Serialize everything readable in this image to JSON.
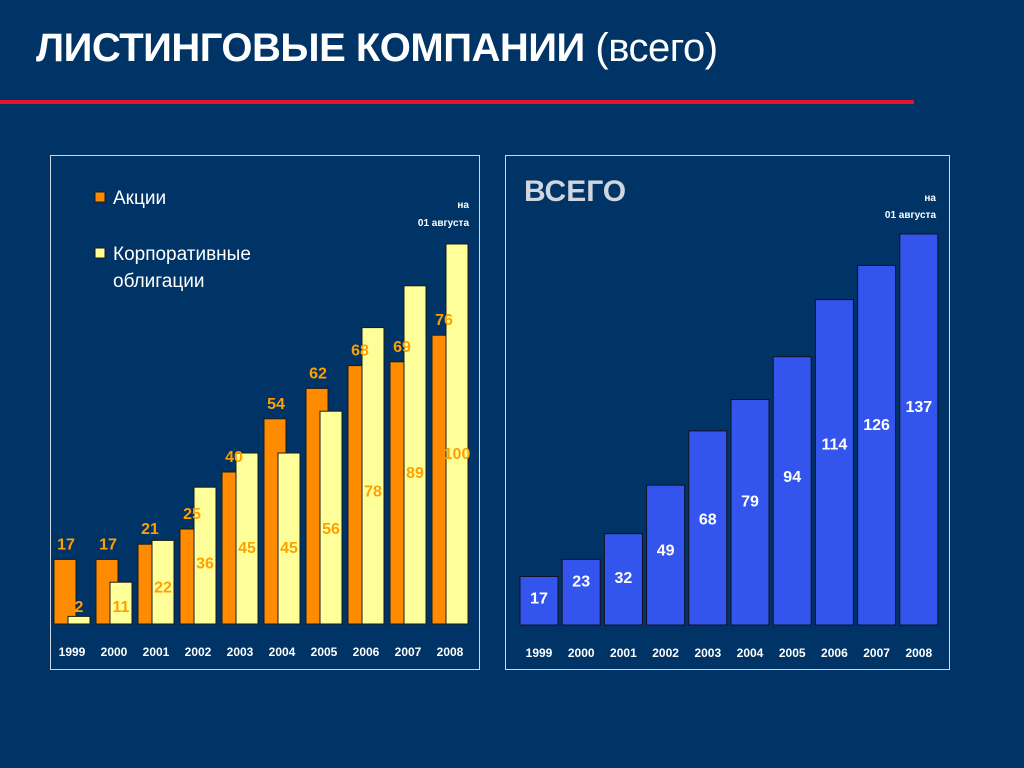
{
  "header": {
    "title_bold": "ЛИСТИНГОВЫЕ КОМПАНИИ",
    "title_light": "(всего)"
  },
  "colors": {
    "background": "#003366",
    "rule": "#e8142a",
    "stocks": "#ff8c00",
    "bonds": "#ffff99",
    "total": "#3355ee",
    "stocks_label": "#ffa000",
    "bonds_label": "#ffa000"
  },
  "chart_data": [
    {
      "type": "bar",
      "categories": [
        "1999",
        "2000",
        "2001",
        "2002",
        "2003",
        "2004",
        "2005",
        "2006",
        "2007",
        "2008"
      ],
      "series": [
        {
          "name": "Акции",
          "values": [
            17,
            17,
            21,
            25,
            40,
            54,
            62,
            68,
            69,
            76
          ]
        },
        {
          "name": "Корпоративные облигации",
          "values": [
            2,
            11,
            22,
            36,
            45,
            45,
            56,
            78,
            89,
            100
          ]
        }
      ],
      "legend": [
        "Акции",
        "Корпоративные облигации"
      ],
      "legend_position": "top-left",
      "note": [
        "на",
        "01 августа"
      ],
      "ylim": [
        0,
        100
      ],
      "grid": false
    },
    {
      "type": "bar",
      "title": "ВСЕГО",
      "categories": [
        "1999",
        "2000",
        "2001",
        "2002",
        "2003",
        "2004",
        "2005",
        "2006",
        "2007",
        "2008"
      ],
      "values": [
        17,
        23,
        32,
        49,
        68,
        79,
        94,
        114,
        126,
        137
      ],
      "note": [
        "на",
        "01 августа"
      ],
      "ylim": [
        0,
        137
      ],
      "grid": false
    }
  ]
}
